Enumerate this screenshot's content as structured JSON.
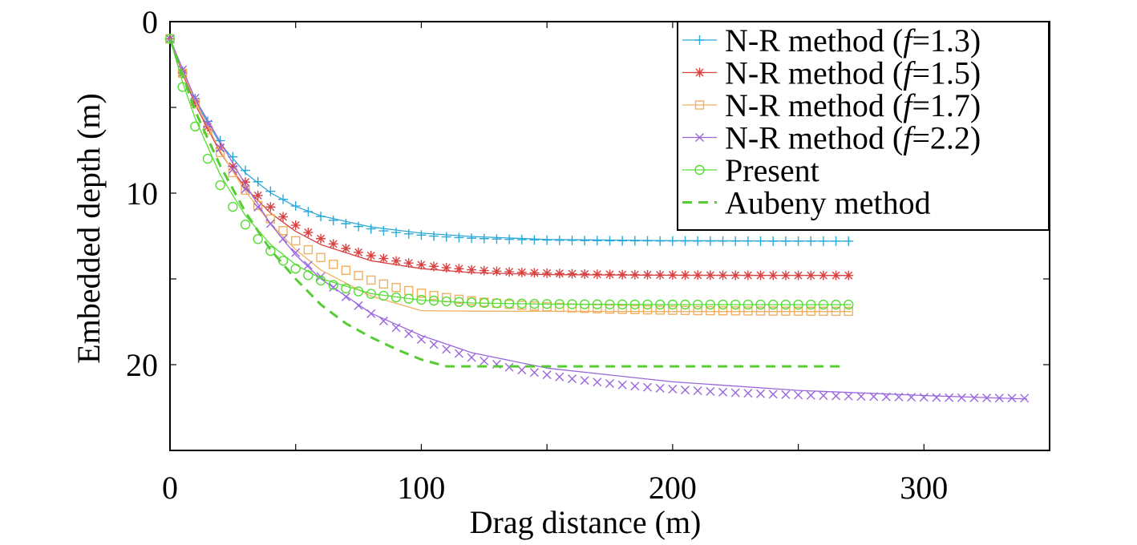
{
  "chart_data": {
    "type": "line",
    "xlabel": "Drag distance (m)",
    "ylabel": "Embedded depth (m)",
    "xlim": [
      0,
      350
    ],
    "ylim": [
      0,
      25
    ],
    "y_inverted": true,
    "x_ticks": [
      0,
      100,
      200,
      300
    ],
    "x_tick_labels": [
      "0",
      "100",
      "200",
      "300"
    ],
    "y_ticks": [
      0,
      10,
      20
    ],
    "y_tick_labels": [
      "0",
      "10",
      "20"
    ],
    "grid": false,
    "legend_position": "top-right",
    "series": [
      {
        "name": "N-R method (f=1.3)",
        "legend_parts": [
          "N-R method (",
          "f",
          "=1.3)"
        ],
        "color": "#2aa9d8",
        "marker": "plus",
        "line": "solid",
        "x_max": 271,
        "y_final": 12.8,
        "k": 0.035,
        "points": [
          [
            0,
            1
          ],
          [
            5,
            2.96
          ],
          [
            10,
            4.62
          ],
          [
            20,
            7.12
          ],
          [
            30,
            8.82
          ],
          [
            40,
            9.98
          ],
          [
            50,
            10.78
          ],
          [
            60,
            11.32
          ],
          [
            80,
            11.97
          ],
          [
            100,
            12.33
          ],
          [
            120,
            12.53
          ],
          [
            150,
            12.7
          ],
          [
            200,
            12.77
          ],
          [
            271,
            12.8
          ]
        ]
      },
      {
        "name": "N-R method (f=1.5)",
        "legend_parts": [
          "N-R method (",
          "f",
          "=1.5)"
        ],
        "color": "#d94040",
        "marker": "star",
        "line": "solid",
        "x_max": 271,
        "y_final": 14.8,
        "k": 0.031,
        "points": [
          [
            0,
            1
          ],
          [
            5,
            3.03
          ],
          [
            10,
            4.82
          ],
          [
            20,
            7.64
          ],
          [
            30,
            9.68
          ],
          [
            40,
            11.16
          ],
          [
            50,
            12.23
          ],
          [
            60,
            13.0
          ],
          [
            80,
            13.94
          ],
          [
            100,
            14.4
          ],
          [
            120,
            14.63
          ],
          [
            150,
            14.75
          ],
          [
            200,
            14.79
          ],
          [
            271,
            14.8
          ]
        ]
      },
      {
        "name": "N-R method (f=1.7)",
        "legend_parts": [
          "N-R method (",
          "f",
          "=1.7)"
        ],
        "color": "#f0b060",
        "marker": "square",
        "line": "solid",
        "x_max": 271,
        "y_final": 16.9,
        "k": 0.027,
        "points": [
          [
            0,
            1
          ],
          [
            5,
            2.9
          ],
          [
            10,
            4.63
          ],
          [
            20,
            7.55
          ],
          [
            30,
            9.89
          ],
          [
            40,
            11.77
          ],
          [
            50,
            13.28
          ],
          [
            60,
            14.48
          ],
          [
            80,
            16.0
          ],
          [
            100,
            16.85
          ],
          [
            120,
            16.88
          ],
          [
            150,
            16.89
          ],
          [
            200,
            16.9
          ],
          [
            271,
            16.9
          ]
        ]
      },
      {
        "name": "N-R method (f=2.2)",
        "legend_parts": [
          "N-R method (",
          "f",
          "=2.2)"
        ],
        "color": "#9966dd",
        "marker": "cross",
        "line": "solid",
        "x_max": 341,
        "y_final": 22.0,
        "k": 0.018,
        "points": [
          [
            0,
            1
          ],
          [
            10,
            4.5
          ],
          [
            20,
            7.0
          ],
          [
            30,
            9.5
          ],
          [
            40,
            11.8
          ],
          [
            50,
            13.6
          ],
          [
            60,
            15.0
          ],
          [
            80,
            17.0
          ],
          [
            100,
            18.3
          ],
          [
            120,
            19.3
          ],
          [
            150,
            20.2
          ],
          [
            200,
            21.0
          ],
          [
            250,
            21.5
          ],
          [
            300,
            21.8
          ],
          [
            341,
            22.0
          ]
        ]
      },
      {
        "name": "Present",
        "legend_parts": [
          "Present"
        ],
        "color": "#55dd33",
        "marker": "circle",
        "line": "solid",
        "x_max": 271,
        "y_final": 16.5,
        "k": 0.04,
        "points": [
          [
            0,
            1
          ],
          [
            5,
            3.53
          ],
          [
            10,
            5.63
          ],
          [
            20,
            8.94
          ],
          [
            30,
            11.31
          ],
          [
            40,
            12.99
          ],
          [
            50,
            14.17
          ],
          [
            60,
            14.98
          ],
          [
            80,
            15.86
          ],
          [
            100,
            16.24
          ],
          [
            120,
            16.4
          ],
          [
            150,
            16.47
          ],
          [
            200,
            16.5
          ],
          [
            271,
            16.5
          ]
        ]
      },
      {
        "name": "Aubeny method",
        "legend_parts": [
          "Aubeny method"
        ],
        "color": "#55cc33",
        "marker": "none",
        "line": "dashed",
        "x_max": 268,
        "points": [
          [
            0,
            1
          ],
          [
            10,
            5.2
          ],
          [
            20,
            8.4
          ],
          [
            30,
            11.1
          ],
          [
            40,
            13.3
          ],
          [
            50,
            15.0
          ],
          [
            60,
            16.5
          ],
          [
            70,
            17.6
          ],
          [
            80,
            18.4
          ],
          [
            90,
            19.1
          ],
          [
            100,
            19.7
          ],
          [
            110,
            20.1
          ],
          [
            268,
            20.1
          ]
        ]
      }
    ]
  }
}
